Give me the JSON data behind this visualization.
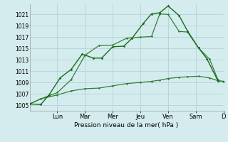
{
  "bg_color": "#d4ecee",
  "grid_color": "#afd4d8",
  "line_color1": "#1a6b1a",
  "line_color2": "#2d7a2d",
  "line_color3": "#2d7a2d",
  "ylabel": "Pression niveau de la mer( hPa )",
  "yticks": [
    1005,
    1007,
    1009,
    1011,
    1013,
    1015,
    1017,
    1019,
    1021
  ],
  "ylim": [
    1004.0,
    1022.8
  ],
  "xlim": [
    0,
    7.0
  ],
  "day_labels": [
    "Lun",
    "Mar",
    "Mer",
    "Jeu",
    "Ven",
    "Sam",
    "D"
  ],
  "day_positions": [
    1.0,
    2.0,
    3.0,
    4.0,
    5.0,
    6.0,
    7.0
  ],
  "series1_x": [
    0.0,
    0.4,
    0.7,
    1.1,
    1.5,
    1.9,
    2.3,
    2.6,
    3.0,
    3.4,
    3.7,
    4.1,
    4.4,
    4.7,
    5.0,
    5.4,
    5.7,
    6.1,
    6.4,
    6.8,
    7.0
  ],
  "series1_y": [
    1005.2,
    1005.1,
    1006.8,
    1009.8,
    1011.3,
    1014.0,
    1013.3,
    1013.3,
    1015.3,
    1015.4,
    1016.8,
    1019.4,
    1021.1,
    1021.3,
    1022.5,
    1020.8,
    1018.1,
    1015.1,
    1013.2,
    1009.3,
    1009.2
  ],
  "series2_x": [
    0.0,
    0.4,
    1.0,
    1.5,
    2.0,
    2.5,
    3.0,
    3.5,
    4.0,
    4.4,
    4.7,
    5.0,
    5.4,
    5.7,
    6.1,
    6.5,
    6.8
  ],
  "series2_y": [
    1005.2,
    1006.1,
    1006.8,
    1007.5,
    1007.9,
    1008.0,
    1008.4,
    1008.8,
    1009.0,
    1009.2,
    1009.4,
    1009.7,
    1009.9,
    1010.0,
    1010.1,
    1009.8,
    1009.3
  ],
  "series3_x": [
    0.0,
    0.4,
    1.0,
    1.5,
    2.0,
    2.5,
    3.0,
    3.5,
    4.0,
    4.4,
    4.7,
    5.0,
    5.4,
    5.7,
    6.1,
    6.5,
    6.8
  ],
  "series3_y": [
    1005.2,
    1006.1,
    1007.2,
    1009.5,
    1013.8,
    1015.5,
    1015.6,
    1016.8,
    1017.0,
    1017.1,
    1021.1,
    1021.0,
    1018.0,
    1017.9,
    1015.1,
    1013.1,
    1009.5
  ]
}
